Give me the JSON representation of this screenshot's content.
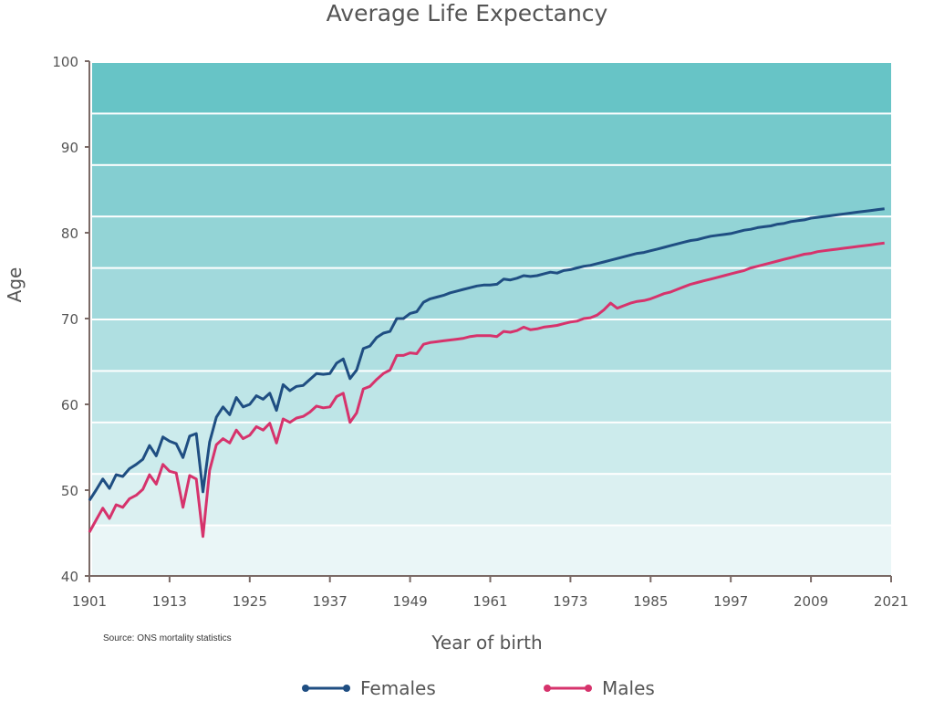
{
  "chart_data": {
    "type": "line",
    "title": "Average Life Expectancy",
    "xlabel": "Year of birth",
    "ylabel": "Age",
    "source": "Source: ONS mortality statistics",
    "xlim": [
      1901,
      2021
    ],
    "ylim": [
      40,
      100
    ],
    "x_ticks": [
      "1901",
      "1913",
      "1925",
      "1937",
      "1949",
      "1961",
      "1973",
      "1985",
      "1997",
      "2009",
      "2021"
    ],
    "y_ticks": [
      "40",
      "50",
      "60",
      "70",
      "80",
      "90",
      "100"
    ],
    "band_colors": [
      "#eaf6f7",
      "#dbf0f1",
      "#ccebec",
      "#bee5e7",
      "#afdfe1",
      "#a1d9dc",
      "#93d4d6",
      "#84ced1",
      "#75c9cb",
      "#67c4c6"
    ],
    "legend_placement": "bottom-center",
    "series": [
      {
        "name": "Females",
        "color": "#1f4e82",
        "points": [
          [
            1901,
            48.8
          ],
          [
            1902,
            50.0
          ],
          [
            1903,
            51.3
          ],
          [
            1904,
            50.2
          ],
          [
            1905,
            51.8
          ],
          [
            1906,
            51.6
          ],
          [
            1907,
            52.5
          ],
          [
            1908,
            53.0
          ],
          [
            1909,
            53.6
          ],
          [
            1910,
            55.2
          ],
          [
            1911,
            54.0
          ],
          [
            1912,
            56.2
          ],
          [
            1913,
            55.7
          ],
          [
            1914,
            55.4
          ],
          [
            1915,
            53.8
          ],
          [
            1916,
            56.3
          ],
          [
            1917,
            56.6
          ],
          [
            1918,
            49.8
          ],
          [
            1919,
            55.6
          ],
          [
            1920,
            58.5
          ],
          [
            1921,
            59.7
          ],
          [
            1922,
            58.8
          ],
          [
            1923,
            60.8
          ],
          [
            1924,
            59.7
          ],
          [
            1925,
            60.0
          ],
          [
            1926,
            61.0
          ],
          [
            1927,
            60.6
          ],
          [
            1928,
            61.3
          ],
          [
            1929,
            59.3
          ],
          [
            1930,
            62.3
          ],
          [
            1931,
            61.6
          ],
          [
            1932,
            62.1
          ],
          [
            1933,
            62.2
          ],
          [
            1934,
            62.9
          ],
          [
            1935,
            63.6
          ],
          [
            1936,
            63.5
          ],
          [
            1937,
            63.6
          ],
          [
            1938,
            64.8
          ],
          [
            1939,
            65.3
          ],
          [
            1940,
            63.0
          ],
          [
            1941,
            64.0
          ],
          [
            1942,
            66.5
          ],
          [
            1943,
            66.8
          ],
          [
            1944,
            67.8
          ],
          [
            1945,
            68.3
          ],
          [
            1946,
            68.5
          ],
          [
            1947,
            70.0
          ],
          [
            1948,
            70.0
          ],
          [
            1949,
            70.6
          ],
          [
            1950,
            70.8
          ],
          [
            1951,
            71.9
          ],
          [
            1952,
            72.3
          ],
          [
            1953,
            72.5
          ],
          [
            1954,
            72.7
          ],
          [
            1955,
            73.0
          ],
          [
            1956,
            73.2
          ],
          [
            1957,
            73.4
          ],
          [
            1958,
            73.6
          ],
          [
            1959,
            73.8
          ],
          [
            1960,
            73.9
          ],
          [
            1961,
            73.9
          ],
          [
            1962,
            74.0
          ],
          [
            1963,
            74.6
          ],
          [
            1964,
            74.5
          ],
          [
            1965,
            74.7
          ],
          [
            1966,
            75.0
          ],
          [
            1967,
            74.9
          ],
          [
            1968,
            75.0
          ],
          [
            1969,
            75.2
          ],
          [
            1970,
            75.4
          ],
          [
            1971,
            75.3
          ],
          [
            1972,
            75.6
          ],
          [
            1973,
            75.7
          ],
          [
            1974,
            75.9
          ],
          [
            1975,
            76.1
          ],
          [
            1976,
            76.2
          ],
          [
            1977,
            76.4
          ],
          [
            1978,
            76.6
          ],
          [
            1979,
            76.8
          ],
          [
            1980,
            77.0
          ],
          [
            1981,
            77.2
          ],
          [
            1982,
            77.4
          ],
          [
            1983,
            77.6
          ],
          [
            1984,
            77.7
          ],
          [
            1985,
            77.9
          ],
          [
            1986,
            78.1
          ],
          [
            1987,
            78.3
          ],
          [
            1988,
            78.5
          ],
          [
            1989,
            78.7
          ],
          [
            1990,
            78.9
          ],
          [
            1991,
            79.1
          ],
          [
            1992,
            79.2
          ],
          [
            1993,
            79.4
          ],
          [
            1994,
            79.6
          ],
          [
            1995,
            79.7
          ],
          [
            1996,
            79.8
          ],
          [
            1997,
            79.9
          ],
          [
            1998,
            80.1
          ],
          [
            1999,
            80.3
          ],
          [
            2000,
            80.4
          ],
          [
            2001,
            80.6
          ],
          [
            2002,
            80.7
          ],
          [
            2003,
            80.8
          ],
          [
            2004,
            81.0
          ],
          [
            2005,
            81.1
          ],
          [
            2006,
            81.3
          ],
          [
            2007,
            81.4
          ],
          [
            2008,
            81.5
          ],
          [
            2009,
            81.7
          ],
          [
            2010,
            81.8
          ],
          [
            2011,
            81.9
          ],
          [
            2012,
            82.0
          ],
          [
            2013,
            82.1
          ],
          [
            2014,
            82.2
          ],
          [
            2015,
            82.3
          ],
          [
            2016,
            82.4
          ],
          [
            2017,
            82.5
          ],
          [
            2018,
            82.6
          ],
          [
            2019,
            82.7
          ],
          [
            2020,
            82.8
          ]
        ]
      },
      {
        "name": "Males",
        "color": "#d6336c",
        "points": [
          [
            1901,
            45.1
          ],
          [
            1902,
            46.5
          ],
          [
            1903,
            47.9
          ],
          [
            1904,
            46.7
          ],
          [
            1905,
            48.3
          ],
          [
            1906,
            48.0
          ],
          [
            1907,
            49.0
          ],
          [
            1908,
            49.4
          ],
          [
            1909,
            50.1
          ],
          [
            1910,
            51.8
          ],
          [
            1911,
            50.7
          ],
          [
            1912,
            53.0
          ],
          [
            1913,
            52.2
          ],
          [
            1914,
            52.0
          ],
          [
            1915,
            48.0
          ],
          [
            1916,
            51.7
          ],
          [
            1917,
            51.3
          ],
          [
            1918,
            44.6
          ],
          [
            1919,
            52.3
          ],
          [
            1920,
            55.3
          ],
          [
            1921,
            56.0
          ],
          [
            1922,
            55.5
          ],
          [
            1923,
            57.0
          ],
          [
            1924,
            56.0
          ],
          [
            1925,
            56.4
          ],
          [
            1926,
            57.4
          ],
          [
            1927,
            57.0
          ],
          [
            1928,
            57.8
          ],
          [
            1929,
            55.5
          ],
          [
            1930,
            58.3
          ],
          [
            1931,
            57.9
          ],
          [
            1932,
            58.4
          ],
          [
            1933,
            58.6
          ],
          [
            1934,
            59.1
          ],
          [
            1935,
            59.8
          ],
          [
            1936,
            59.6
          ],
          [
            1937,
            59.7
          ],
          [
            1938,
            60.9
          ],
          [
            1939,
            61.3
          ],
          [
            1940,
            57.9
          ],
          [
            1941,
            59.0
          ],
          [
            1942,
            61.8
          ],
          [
            1943,
            62.1
          ],
          [
            1944,
            62.9
          ],
          [
            1945,
            63.6
          ],
          [
            1946,
            64.0
          ],
          [
            1947,
            65.7
          ],
          [
            1948,
            65.7
          ],
          [
            1949,
            66.0
          ],
          [
            1950,
            65.9
          ],
          [
            1951,
            67.0
          ],
          [
            1952,
            67.2
          ],
          [
            1953,
            67.3
          ],
          [
            1954,
            67.4
          ],
          [
            1955,
            67.5
          ],
          [
            1956,
            67.6
          ],
          [
            1957,
            67.7
          ],
          [
            1958,
            67.9
          ],
          [
            1959,
            68.0
          ],
          [
            1960,
            68.0
          ],
          [
            1961,
            68.0
          ],
          [
            1962,
            67.9
          ],
          [
            1963,
            68.5
          ],
          [
            1964,
            68.4
          ],
          [
            1965,
            68.6
          ],
          [
            1966,
            69.0
          ],
          [
            1967,
            68.7
          ],
          [
            1968,
            68.8
          ],
          [
            1969,
            69.0
          ],
          [
            1970,
            69.1
          ],
          [
            1971,
            69.2
          ],
          [
            1972,
            69.4
          ],
          [
            1973,
            69.6
          ],
          [
            1974,
            69.7
          ],
          [
            1975,
            70.0
          ],
          [
            1976,
            70.1
          ],
          [
            1977,
            70.4
          ],
          [
            1978,
            71.0
          ],
          [
            1979,
            71.8
          ],
          [
            1980,
            71.2
          ],
          [
            1981,
            71.5
          ],
          [
            1982,
            71.8
          ],
          [
            1983,
            72.0
          ],
          [
            1984,
            72.1
          ],
          [
            1985,
            72.3
          ],
          [
            1986,
            72.6
          ],
          [
            1987,
            72.9
          ],
          [
            1988,
            73.1
          ],
          [
            1989,
            73.4
          ],
          [
            1990,
            73.7
          ],
          [
            1991,
            74.0
          ],
          [
            1992,
            74.2
          ],
          [
            1993,
            74.4
          ],
          [
            1994,
            74.6
          ],
          [
            1995,
            74.8
          ],
          [
            1996,
            75.0
          ],
          [
            1997,
            75.2
          ],
          [
            1998,
            75.4
          ],
          [
            1999,
            75.6
          ],
          [
            2000,
            75.9
          ],
          [
            2001,
            76.1
          ],
          [
            2002,
            76.3
          ],
          [
            2003,
            76.5
          ],
          [
            2004,
            76.7
          ],
          [
            2005,
            76.9
          ],
          [
            2006,
            77.1
          ],
          [
            2007,
            77.3
          ],
          [
            2008,
            77.5
          ],
          [
            2009,
            77.6
          ],
          [
            2010,
            77.8
          ],
          [
            2011,
            77.9
          ],
          [
            2012,
            78.0
          ],
          [
            2013,
            78.1
          ],
          [
            2014,
            78.2
          ],
          [
            2015,
            78.3
          ],
          [
            2016,
            78.4
          ],
          [
            2017,
            78.5
          ],
          [
            2018,
            78.6
          ],
          [
            2019,
            78.7
          ],
          [
            2020,
            78.8
          ]
        ]
      }
    ]
  }
}
